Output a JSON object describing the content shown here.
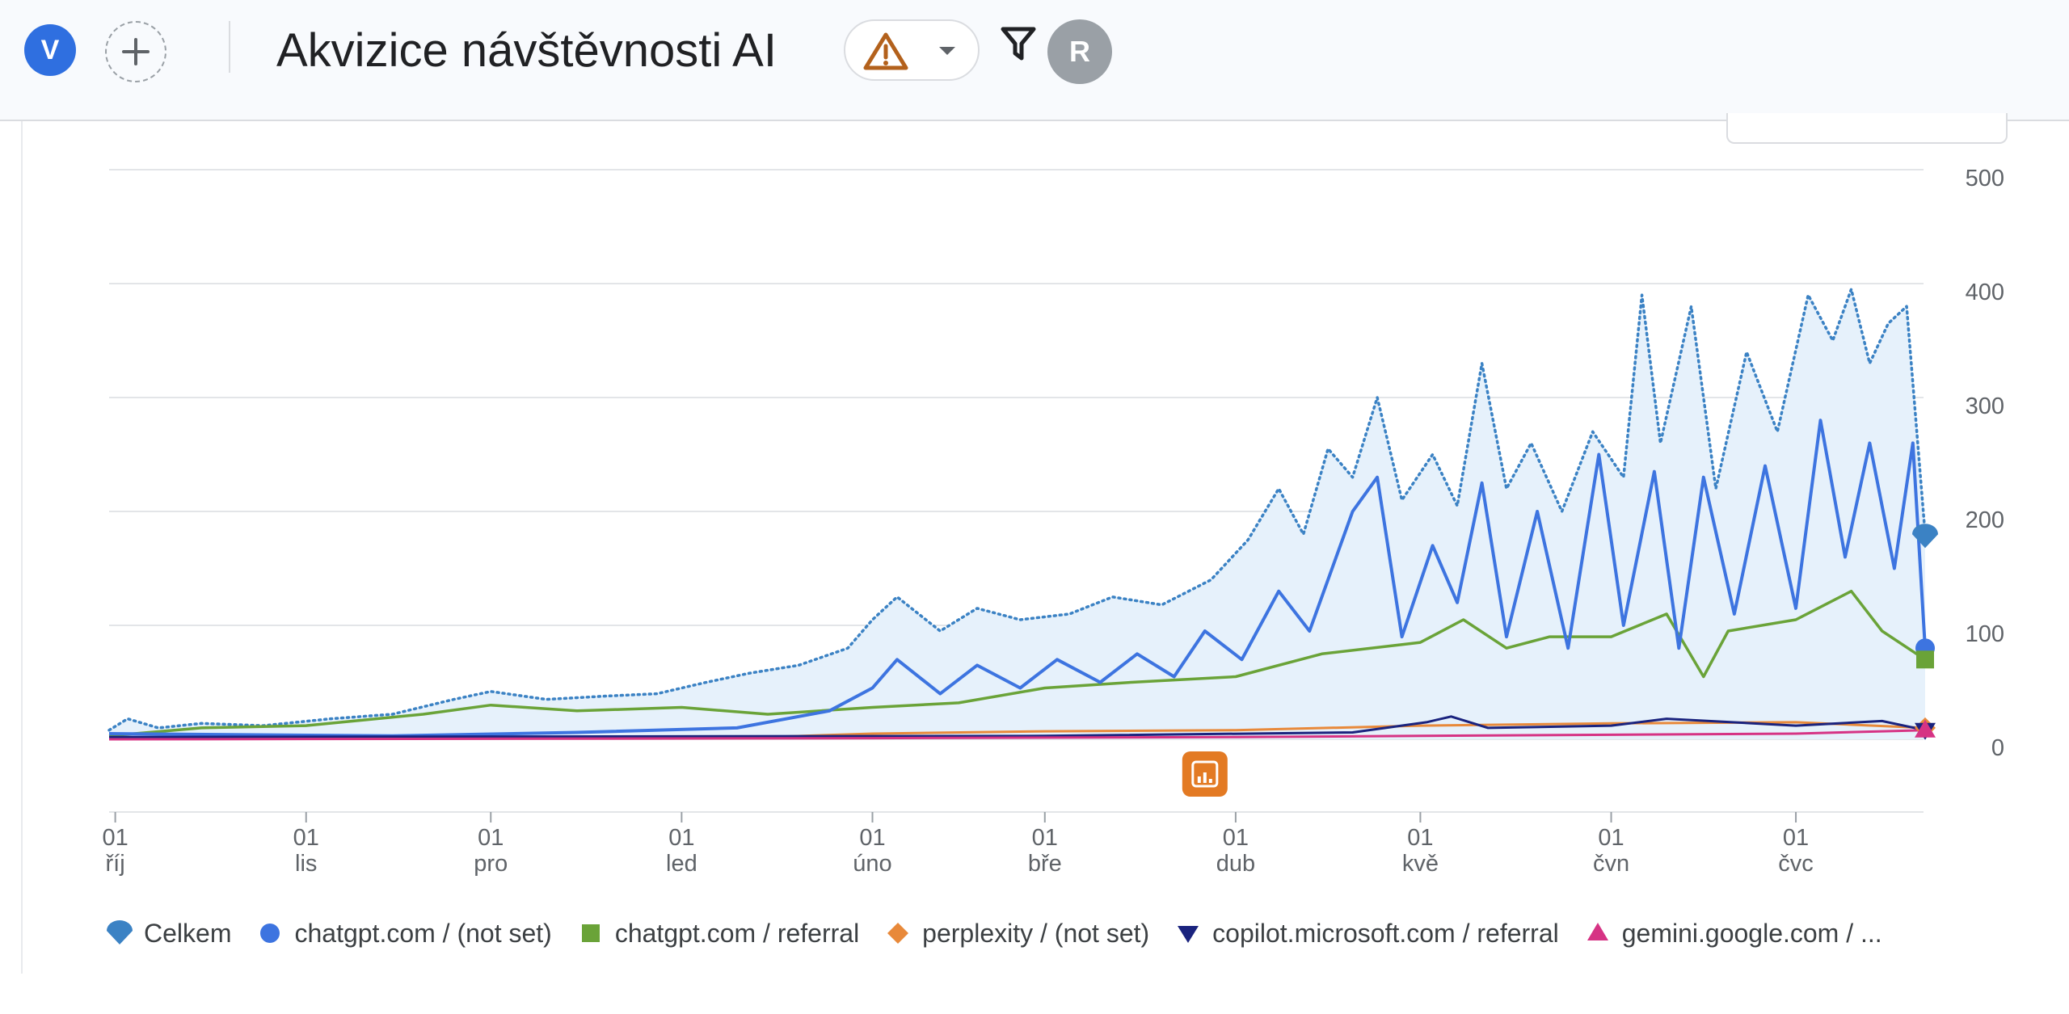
{
  "header": {
    "avatar_initial": "V",
    "title": "Akvizice návštěvnosti AI",
    "user_initial": "R"
  },
  "icons": [
    "add-icon",
    "warning-icon",
    "chevron-down-icon",
    "filter-icon",
    "insight-icon"
  ],
  "colors": {
    "total": "#3b82c4",
    "chatgpt_not_set": "#3d74e0",
    "chatgpt_referral": "#6aa338",
    "perplexity": "#e8893a",
    "copilot": "#1a237e",
    "gemini": "#d63384",
    "total_fill": "#e6f1fb",
    "warning": "#b3611c",
    "annotation": "#e37a23"
  },
  "chart_data": {
    "type": "line",
    "y_ticks": [
      0,
      100,
      200,
      300,
      400,
      500
    ],
    "ylim": [
      0,
      500
    ],
    "y_axis_side": "right",
    "grid": true,
    "x_range": [
      "2024-09-30",
      "2025-07-22"
    ],
    "x_ticks": [
      {
        "date": "2024-10-01",
        "day": "01",
        "month": "říj"
      },
      {
        "date": "2024-11-01",
        "day": "01",
        "month": "lis"
      },
      {
        "date": "2024-12-01",
        "day": "01",
        "month": "pro"
      },
      {
        "date": "2025-01-01",
        "day": "01",
        "month": "led"
      },
      {
        "date": "2025-02-01",
        "day": "01",
        "month": "úno"
      },
      {
        "date": "2025-03-01",
        "day": "01",
        "month": "bře"
      },
      {
        "date": "2025-04-01",
        "day": "01",
        "month": "dub"
      },
      {
        "date": "2025-05-01",
        "day": "01",
        "month": "kvě"
      },
      {
        "date": "2025-06-01",
        "day": "01",
        "month": "čvn"
      },
      {
        "date": "2025-07-01",
        "day": "01",
        "month": "čvc"
      }
    ],
    "annotation_date": "2025-03-27",
    "legend_placement": "bottom",
    "series": [
      {
        "name": "Celkem",
        "key": "total",
        "style": "dotted-area",
        "marker": "drop",
        "points": [
          [
            "2024-09-30",
            8
          ],
          [
            "2024-10-03",
            18
          ],
          [
            "2024-10-08",
            10
          ],
          [
            "2024-10-15",
            14
          ],
          [
            "2024-10-25",
            12
          ],
          [
            "2024-11-05",
            18
          ],
          [
            "2024-11-15",
            22
          ],
          [
            "2024-11-25",
            35
          ],
          [
            "2024-12-01",
            42
          ],
          [
            "2024-12-10",
            35
          ],
          [
            "2024-12-20",
            38
          ],
          [
            "2024-12-28",
            40
          ],
          [
            "2025-01-05",
            50
          ],
          [
            "2025-01-12",
            58
          ],
          [
            "2025-01-20",
            65
          ],
          [
            "2025-01-28",
            80
          ],
          [
            "2025-02-01",
            105
          ],
          [
            "2025-02-05",
            125
          ],
          [
            "2025-02-12",
            95
          ],
          [
            "2025-02-18",
            115
          ],
          [
            "2025-02-25",
            105
          ],
          [
            "2025-03-05",
            110
          ],
          [
            "2025-03-12",
            125
          ],
          [
            "2025-03-20",
            118
          ],
          [
            "2025-03-28",
            140
          ],
          [
            "2025-04-03",
            175
          ],
          [
            "2025-04-08",
            220
          ],
          [
            "2025-04-12",
            180
          ],
          [
            "2025-04-16",
            255
          ],
          [
            "2025-04-20",
            230
          ],
          [
            "2025-04-24",
            300
          ],
          [
            "2025-04-28",
            210
          ],
          [
            "2025-05-03",
            250
          ],
          [
            "2025-05-07",
            205
          ],
          [
            "2025-05-11",
            330
          ],
          [
            "2025-05-15",
            220
          ],
          [
            "2025-05-19",
            260
          ],
          [
            "2025-05-24",
            200
          ],
          [
            "2025-05-29",
            270
          ],
          [
            "2025-06-03",
            230
          ],
          [
            "2025-06-06",
            390
          ],
          [
            "2025-06-09",
            260
          ],
          [
            "2025-06-14",
            380
          ],
          [
            "2025-06-18",
            220
          ],
          [
            "2025-06-23",
            340
          ],
          [
            "2025-06-28",
            270
          ],
          [
            "2025-07-03",
            390
          ],
          [
            "2025-07-07",
            350
          ],
          [
            "2025-07-10",
            395
          ],
          [
            "2025-07-13",
            330
          ],
          [
            "2025-07-16",
            365
          ],
          [
            "2025-07-19",
            380
          ],
          [
            "2025-07-22",
            180
          ]
        ],
        "end_value": 180
      },
      {
        "name": "chatgpt.com / (not set)",
        "key": "chatgpt_not_set",
        "style": "solid",
        "marker": "circle",
        "points": [
          [
            "2024-09-30",
            5
          ],
          [
            "2024-11-15",
            3
          ],
          [
            "2024-12-15",
            6
          ],
          [
            "2025-01-10",
            10
          ],
          [
            "2025-01-25",
            25
          ],
          [
            "2025-02-01",
            45
          ],
          [
            "2025-02-05",
            70
          ],
          [
            "2025-02-12",
            40
          ],
          [
            "2025-02-18",
            65
          ],
          [
            "2025-02-25",
            45
          ],
          [
            "2025-03-03",
            70
          ],
          [
            "2025-03-10",
            50
          ],
          [
            "2025-03-16",
            75
          ],
          [
            "2025-03-22",
            55
          ],
          [
            "2025-03-27",
            95
          ],
          [
            "2025-04-02",
            70
          ],
          [
            "2025-04-08",
            130
          ],
          [
            "2025-04-13",
            95
          ],
          [
            "2025-04-20",
            200
          ],
          [
            "2025-04-24",
            230
          ],
          [
            "2025-04-28",
            90
          ],
          [
            "2025-05-03",
            170
          ],
          [
            "2025-05-07",
            120
          ],
          [
            "2025-05-11",
            225
          ],
          [
            "2025-05-15",
            90
          ],
          [
            "2025-05-20",
            200
          ],
          [
            "2025-05-25",
            80
          ],
          [
            "2025-05-30",
            250
          ],
          [
            "2025-06-03",
            100
          ],
          [
            "2025-06-08",
            235
          ],
          [
            "2025-06-12",
            80
          ],
          [
            "2025-06-16",
            230
          ],
          [
            "2025-06-21",
            110
          ],
          [
            "2025-06-26",
            240
          ],
          [
            "2025-07-01",
            115
          ],
          [
            "2025-07-05",
            280
          ],
          [
            "2025-07-09",
            160
          ],
          [
            "2025-07-13",
            260
          ],
          [
            "2025-07-17",
            150
          ],
          [
            "2025-07-20",
            260
          ],
          [
            "2025-07-22",
            80
          ]
        ],
        "end_value": 80
      },
      {
        "name": "chatgpt.com / referral",
        "key": "chatgpt_referral",
        "style": "solid",
        "marker": "square",
        "points": [
          [
            "2024-09-30",
            3
          ],
          [
            "2024-10-15",
            10
          ],
          [
            "2024-11-01",
            12
          ],
          [
            "2024-11-20",
            22
          ],
          [
            "2024-12-01",
            30
          ],
          [
            "2024-12-15",
            25
          ],
          [
            "2025-01-01",
            28
          ],
          [
            "2025-01-15",
            22
          ],
          [
            "2025-02-01",
            28
          ],
          [
            "2025-02-15",
            32
          ],
          [
            "2025-03-01",
            45
          ],
          [
            "2025-03-15",
            50
          ],
          [
            "2025-04-01",
            55
          ],
          [
            "2025-04-15",
            75
          ],
          [
            "2025-05-01",
            85
          ],
          [
            "2025-05-08",
            105
          ],
          [
            "2025-05-15",
            80
          ],
          [
            "2025-05-22",
            90
          ],
          [
            "2025-06-01",
            90
          ],
          [
            "2025-06-10",
            110
          ],
          [
            "2025-06-16",
            55
          ],
          [
            "2025-06-20",
            95
          ],
          [
            "2025-07-01",
            105
          ],
          [
            "2025-07-10",
            130
          ],
          [
            "2025-07-15",
            95
          ],
          [
            "2025-07-22",
            70
          ]
        ],
        "end_value": 70
      },
      {
        "name": "perplexity / (not set)",
        "key": "perplexity",
        "style": "solid",
        "marker": "diamond",
        "points": [
          [
            "2024-09-30",
            1
          ],
          [
            "2025-01-15",
            2
          ],
          [
            "2025-02-01",
            5
          ],
          [
            "2025-03-01",
            7
          ],
          [
            "2025-04-01",
            8
          ],
          [
            "2025-05-01",
            12
          ],
          [
            "2025-06-01",
            14
          ],
          [
            "2025-07-01",
            15
          ],
          [
            "2025-07-22",
            10
          ]
        ],
        "end_value": 10
      },
      {
        "name": "copilot.microsoft.com / referral",
        "key": "copilot",
        "style": "solid",
        "marker": "triangle-down",
        "points": [
          [
            "2024-09-30",
            2
          ],
          [
            "2025-03-01",
            3
          ],
          [
            "2025-04-20",
            6
          ],
          [
            "2025-05-02",
            15
          ],
          [
            "2025-05-06",
            20
          ],
          [
            "2025-05-12",
            10
          ],
          [
            "2025-06-01",
            12
          ],
          [
            "2025-06-10",
            18
          ],
          [
            "2025-07-01",
            12
          ],
          [
            "2025-07-15",
            16
          ],
          [
            "2025-07-22",
            8
          ]
        ],
        "end_value": 8
      },
      {
        "name": "gemini.google.com / ...",
        "key": "gemini",
        "style": "solid",
        "marker": "triangle-up",
        "points": [
          [
            "2024-09-30",
            0
          ],
          [
            "2025-02-01",
            1
          ],
          [
            "2025-04-01",
            2
          ],
          [
            "2025-05-01",
            3
          ],
          [
            "2025-06-01",
            4
          ],
          [
            "2025-07-01",
            5
          ],
          [
            "2025-07-22",
            8
          ]
        ],
        "end_value": 8
      }
    ]
  }
}
